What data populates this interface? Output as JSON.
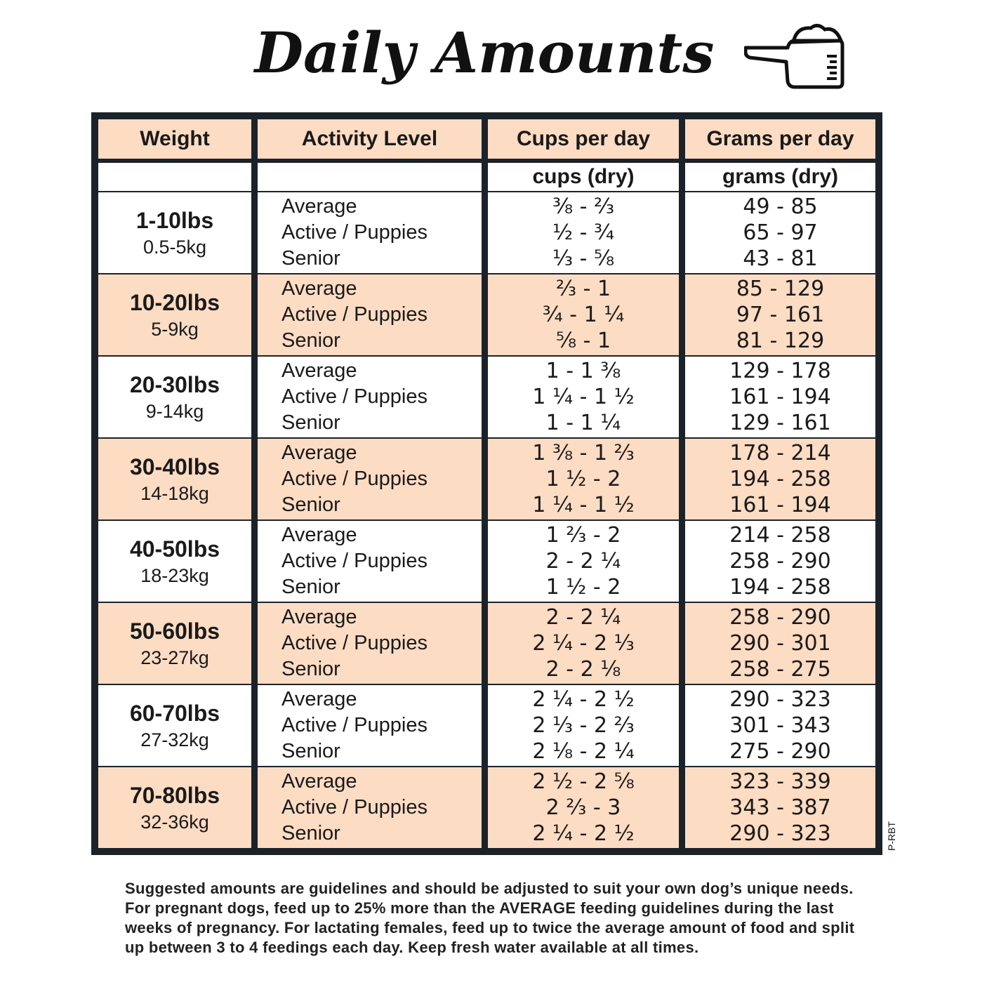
{
  "title": "Daily Amounts",
  "icon": "measuring-scoop-icon",
  "colors": {
    "peach": "#fddcc4",
    "frame": "#1c2229"
  },
  "headers": [
    "Weight",
    "Activity Level",
    "Cups per day",
    "Grams per day"
  ],
  "subheaders": [
    "",
    "",
    "cups (dry)",
    "grams (dry)"
  ],
  "activity_levels": [
    "Average",
    "Active / Puppies",
    "Senior"
  ],
  "rows": [
    {
      "lbs": "1-10lbs",
      "kg": "0.5-5kg",
      "cups": [
        "⅜ - ⅔",
        "½ - ¾",
        "⅓ - ⅝"
      ],
      "grams": [
        "49 - 85",
        "65 - 97",
        "43 - 81"
      ]
    },
    {
      "lbs": "10-20lbs",
      "kg": "5-9kg",
      "cups": [
        "⅔ - 1",
        "¾ - 1 ¼",
        "⅝ - 1"
      ],
      "grams": [
        "85 - 129",
        "97 - 161",
        "81 - 129"
      ]
    },
    {
      "lbs": "20-30lbs",
      "kg": "9-14kg",
      "cups": [
        "1 - 1 ⅜",
        "1 ¼ - 1 ½",
        "1 - 1 ¼"
      ],
      "grams": [
        "129 - 178",
        "161 - 194",
        "129 - 161"
      ]
    },
    {
      "lbs": "30-40lbs",
      "kg": "14-18kg",
      "cups": [
        "1 ⅜ - 1 ⅔",
        "1 ½ - 2",
        "1 ¼ - 1 ½"
      ],
      "grams": [
        "178 - 214",
        "194 - 258",
        "161 - 194"
      ]
    },
    {
      "lbs": "40-50lbs",
      "kg": "18-23kg",
      "cups": [
        "1 ⅔ - 2",
        "2 - 2 ¼",
        "1 ½ - 2"
      ],
      "grams": [
        "214 - 258",
        "258 - 290",
        "194 - 258"
      ]
    },
    {
      "lbs": "50-60lbs",
      "kg": "23-27kg",
      "cups": [
        "2 - 2 ¼",
        "2 ¼ - 2 ⅓",
        "2 - 2 ⅛"
      ],
      "grams": [
        "258 - 290",
        "290 - 301",
        "258 - 275"
      ]
    },
    {
      "lbs": "60-70lbs",
      "kg": "27-32kg",
      "cups": [
        "2 ¼ - 2 ½",
        "2 ⅓ - 2 ⅔",
        "2 ⅛ - 2 ¼"
      ],
      "grams": [
        "290 - 323",
        "301 - 343",
        "275 - 290"
      ]
    },
    {
      "lbs": "70-80lbs",
      "kg": "32-36kg",
      "cups": [
        "2 ½ - 2 ⅝",
        "2 ⅔ - 3",
        "2 ¼ - 2 ½"
      ],
      "grams": [
        "323 - 339",
        "343 - 387",
        "290 - 323"
      ]
    }
  ],
  "code": "P-RBT",
  "note": "Suggested amounts are guidelines and should be adjusted to suit your own dog’s unique needs. For pregnant dogs, feed up to 25% more than the AVERAGE feeding guidelines during the last weeks of pregnancy. For lactating females, feed up to twice the average amount of food and split up between 3 to 4 feedings each day. Keep fresh water available at all times."
}
